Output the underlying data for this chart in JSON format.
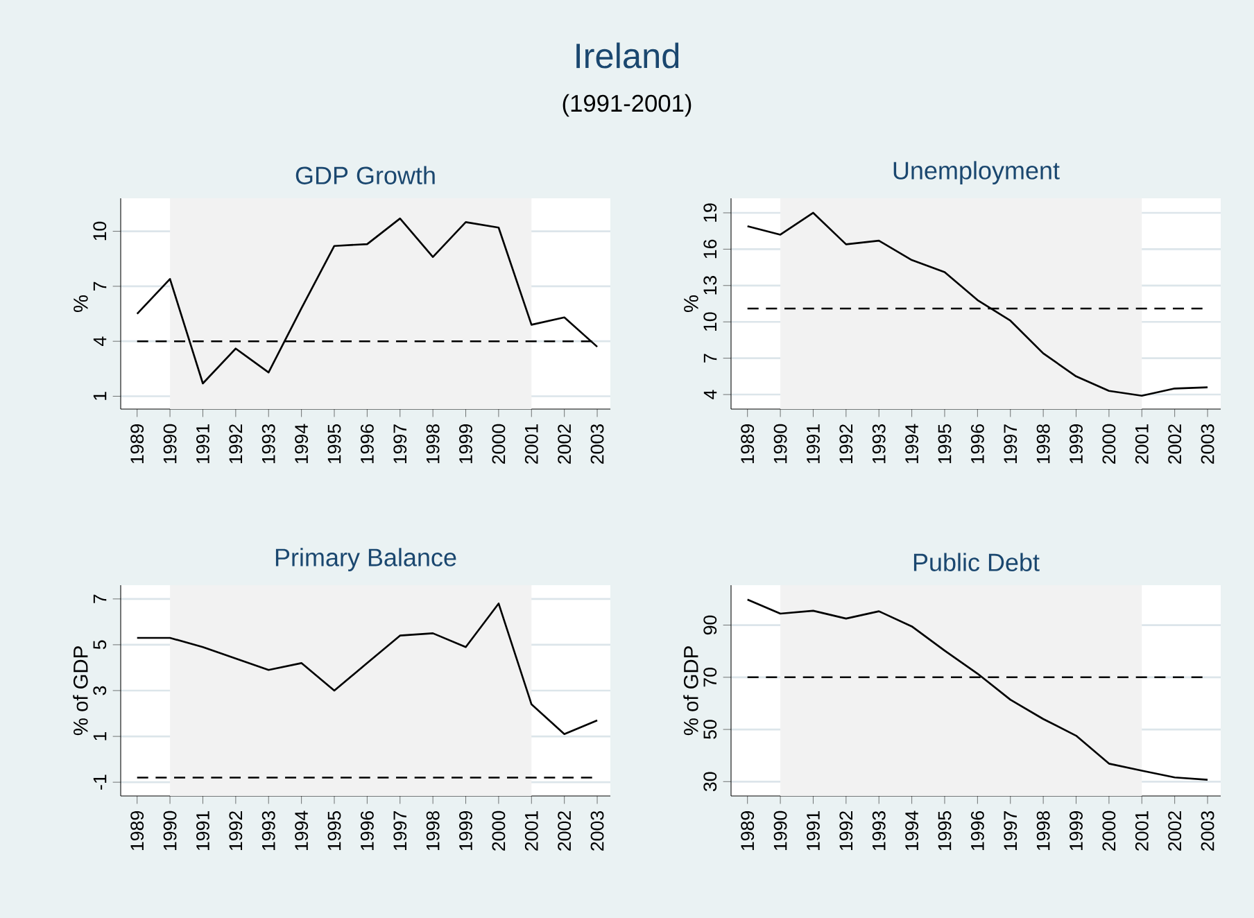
{
  "chart_data": [
    {
      "type": "other",
      "title": "Ireland",
      "subtitle": "(1991-2001)"
    },
    {
      "type": "line",
      "title": "GDP Growth",
      "ylabel": "%",
      "color": "#000000",
      "grid": "y",
      "x": [
        1989,
        1990,
        1991,
        1992,
        1993,
        1994,
        1995,
        1996,
        1997,
        1998,
        1999,
        2000,
        2001,
        2002,
        2003
      ],
      "values": [
        5.5,
        7.4,
        1.7,
        3.6,
        2.3,
        5.8,
        9.2,
        9.3,
        10.7,
        8.6,
        10.5,
        10.2,
        4.9,
        5.3,
        3.7
      ],
      "xlim": [
        1988.5,
        2003.4
      ],
      "xticks": [
        1989,
        1990,
        1991,
        1992,
        1993,
        1994,
        1995,
        1996,
        1997,
        1998,
        1999,
        2000,
        2001,
        2002,
        2003
      ],
      "ylim": [
        0.3,
        11.8
      ],
      "yticks": [
        1,
        4,
        7,
        10
      ],
      "ref_lines": [
        {
          "axis": "y",
          "value": 4,
          "line_style": "dashed",
          "color": "#000000"
        }
      ],
      "bands": [
        {
          "axis": "x",
          "from": 1990,
          "to": 2001,
          "color": "#f2f2f2"
        }
      ]
    },
    {
      "type": "line",
      "title": "Unemployment",
      "ylabel": "%",
      "color": "#000000",
      "grid": "y",
      "x": [
        1989,
        1990,
        1991,
        1992,
        1993,
        1994,
        1995,
        1996,
        1997,
        1998,
        1999,
        2000,
        2001,
        2002,
        2003
      ],
      "values": [
        17.9,
        17.2,
        19.0,
        16.4,
        16.7,
        15.1,
        14.1,
        11.8,
        10.1,
        7.4,
        5.5,
        4.3,
        3.9,
        4.5,
        4.6
      ],
      "xlim": [
        1988.5,
        2003.4
      ],
      "xticks": [
        1989,
        1990,
        1991,
        1992,
        1993,
        1994,
        1995,
        1996,
        1997,
        1998,
        1999,
        2000,
        2001,
        2002,
        2003
      ],
      "ylim": [
        2.8,
        20.2
      ],
      "yticks": [
        4,
        7,
        10,
        13,
        16,
        19
      ],
      "ref_lines": [
        {
          "axis": "y",
          "value": 11.1,
          "line_style": "dashed",
          "color": "#000000"
        }
      ],
      "bands": [
        {
          "axis": "x",
          "from": 1990,
          "to": 2001,
          "color": "#f2f2f2"
        }
      ]
    },
    {
      "type": "line",
      "title": "Primary Balance",
      "ylabel": "% of GDP",
      "color": "#000000",
      "grid": "y",
      "x": [
        1989,
        1990,
        1991,
        1992,
        1993,
        1994,
        1995,
        1996,
        1997,
        1998,
        1999,
        2000,
        2001,
        2002,
        2003
      ],
      "values": [
        5.3,
        5.3,
        4.9,
        4.4,
        3.9,
        4.2,
        3.0,
        4.2,
        5.4,
        5.5,
        4.9,
        6.8,
        2.4,
        1.1,
        1.7
      ],
      "xlim": [
        1988.5,
        2003.4
      ],
      "xticks": [
        1989,
        1990,
        1991,
        1992,
        1993,
        1994,
        1995,
        1996,
        1997,
        1998,
        1999,
        2000,
        2001,
        2002,
        2003
      ],
      "ylim": [
        -1.6,
        7.6
      ],
      "yticks": [
        -1,
        1,
        3,
        5,
        7
      ],
      "ref_lines": [
        {
          "axis": "y",
          "value": -0.8,
          "line_style": "dashed",
          "color": "#000000"
        }
      ],
      "bands": [
        {
          "axis": "x",
          "from": 1990,
          "to": 2001,
          "color": "#f2f2f2"
        }
      ]
    },
    {
      "type": "line",
      "title": "Public Debt",
      "ylabel": "% of GDP",
      "color": "#000000",
      "grid": "y",
      "x": [
        1989,
        1990,
        1991,
        1992,
        1993,
        1994,
        1995,
        1996,
        1997,
        1998,
        1999,
        2000,
        2001,
        2002,
        2003
      ],
      "values": [
        99.8,
        94.4,
        95.5,
        92.5,
        95.3,
        89.5,
        80.2,
        71.4,
        61.4,
        54,
        47.6,
        36.9,
        34.2,
        31.6,
        30.7
      ],
      "xlim": [
        1988.5,
        2003.4
      ],
      "xticks": [
        1989,
        1990,
        1991,
        1992,
        1993,
        1994,
        1995,
        1996,
        1997,
        1998,
        1999,
        2000,
        2001,
        2002,
        2003
      ],
      "ylim": [
        24.5,
        105.3
      ],
      "yticks": [
        30,
        50,
        70,
        90
      ],
      "ref_lines": [
        {
          "axis": "y",
          "value": 70,
          "line_style": "dashed",
          "color": "#000000"
        }
      ],
      "bands": [
        {
          "axis": "x",
          "from": 1990,
          "to": 2001,
          "color": "#f2f2f2"
        }
      ]
    }
  ]
}
